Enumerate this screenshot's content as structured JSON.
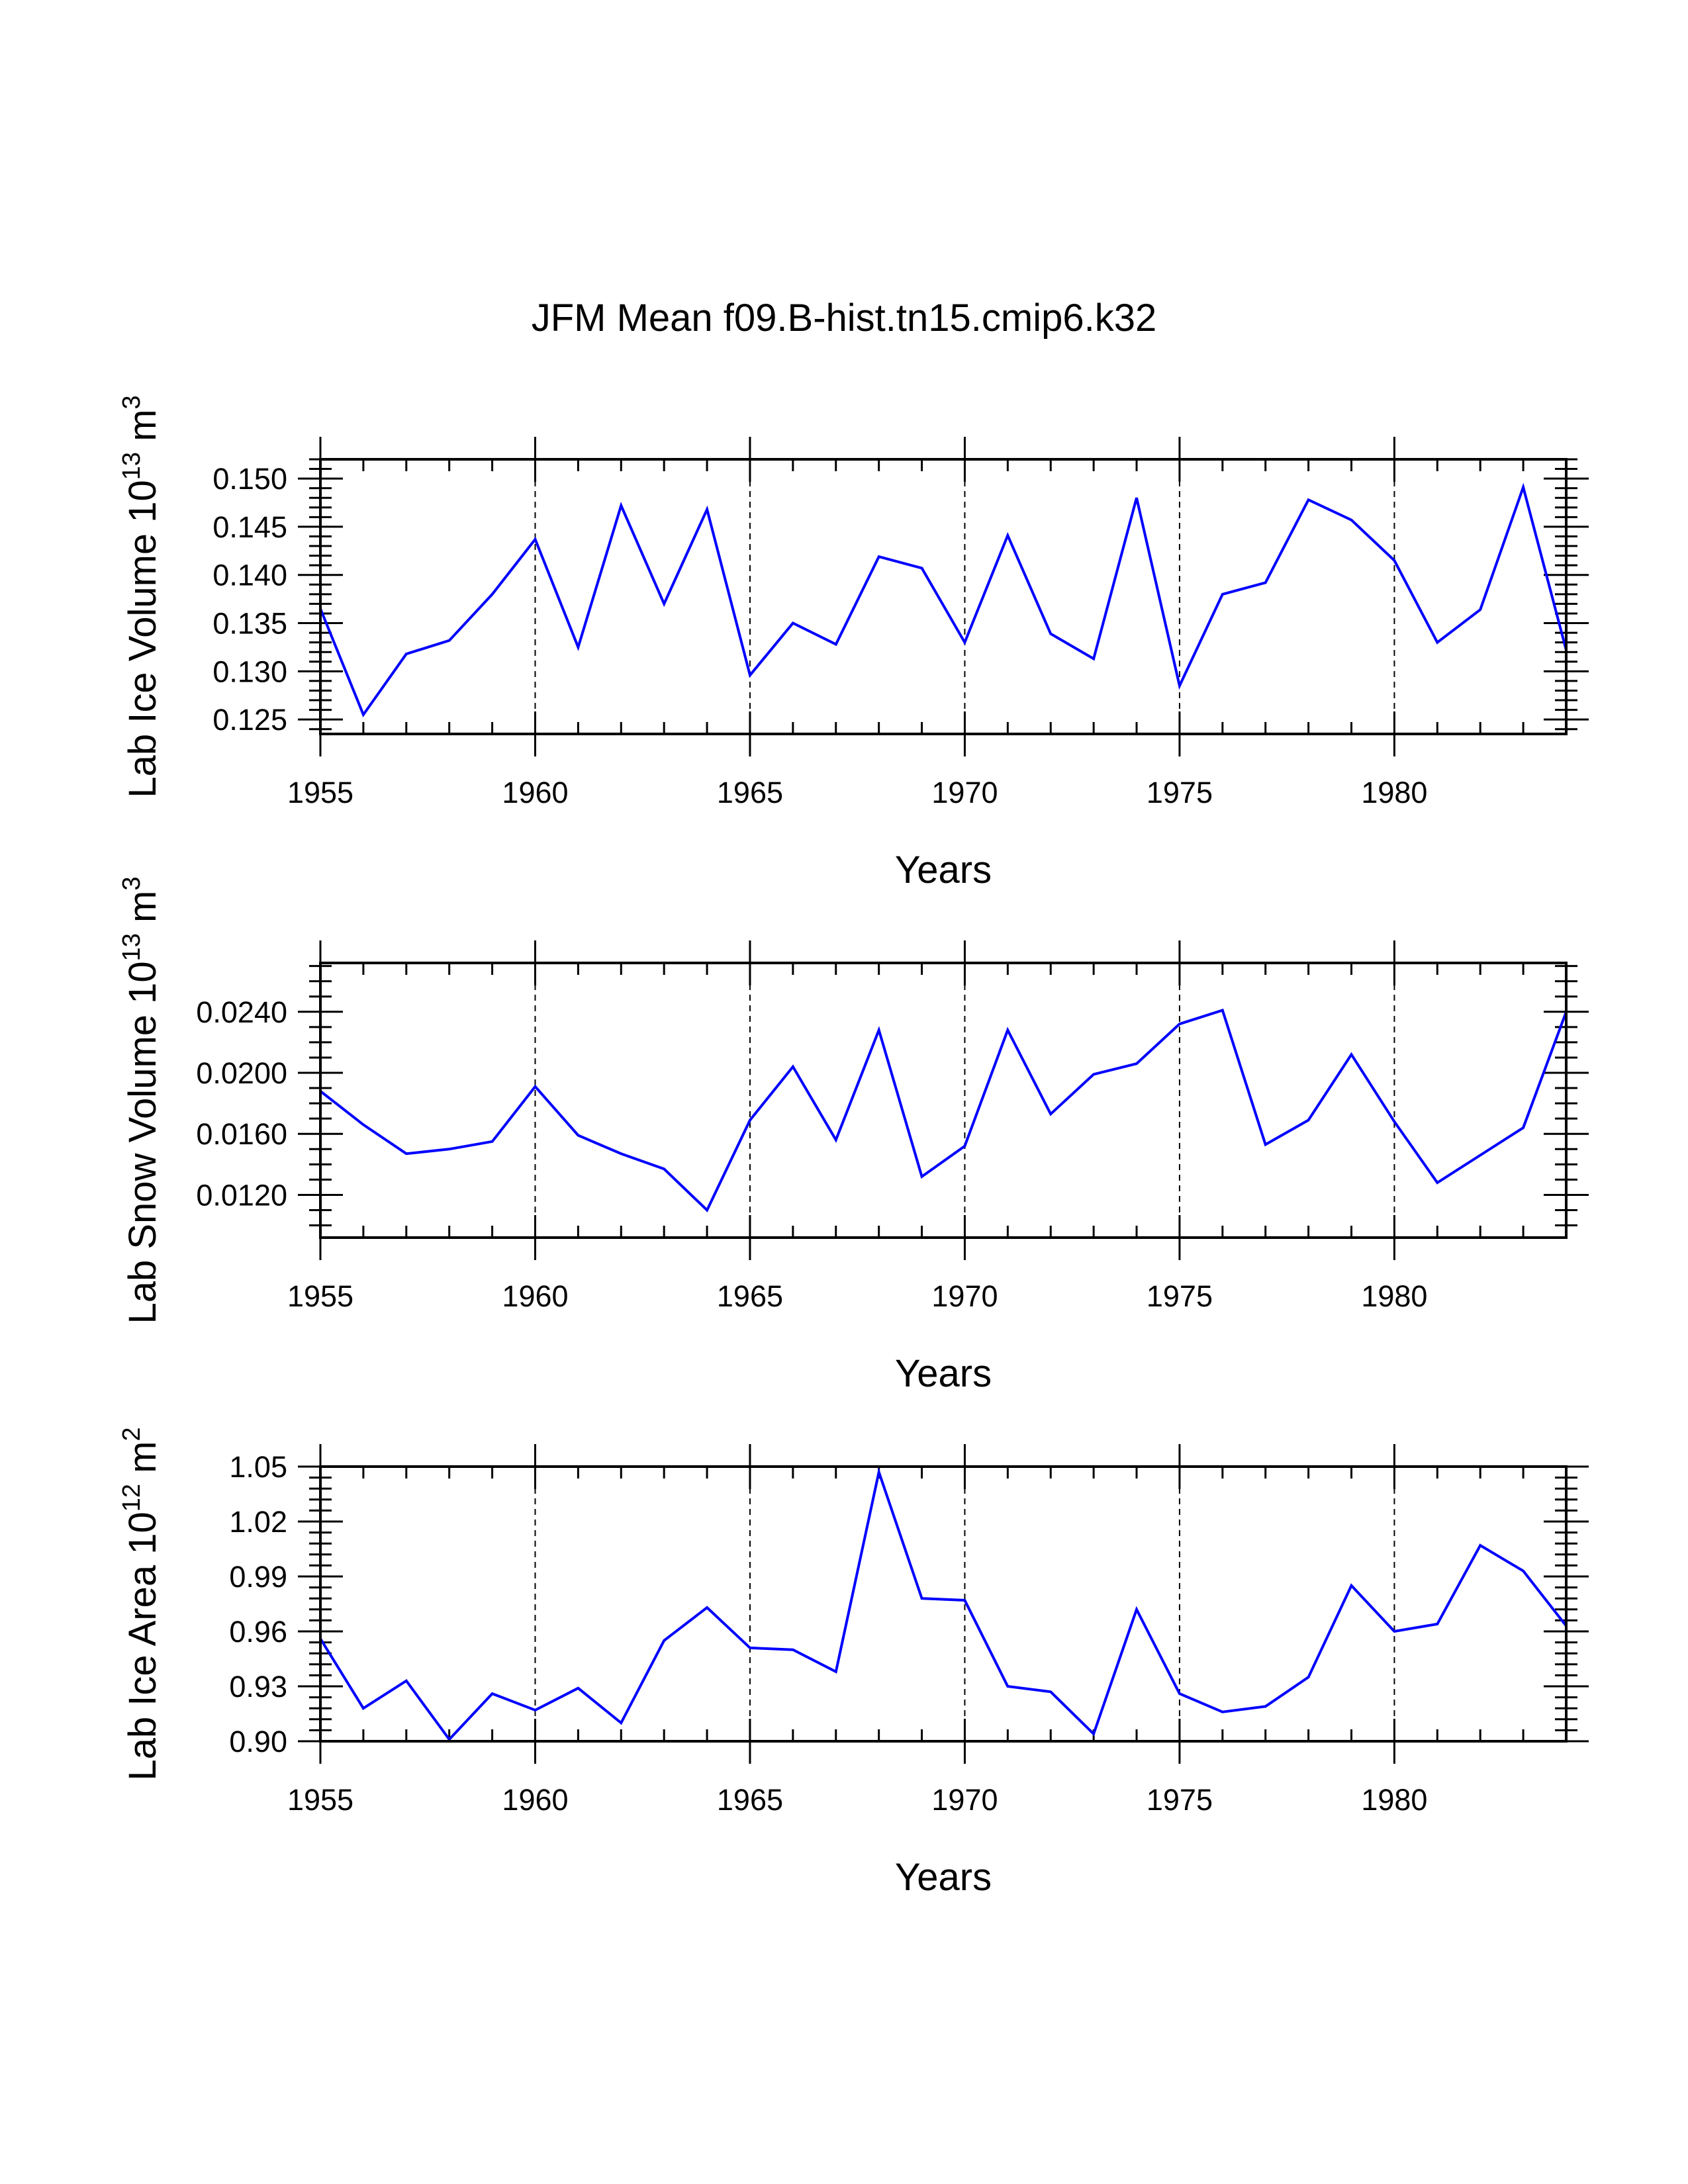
{
  "title": "JFM Mean f09.B-hist.tn15.cmip6.k32",
  "line_color": "#0000ff",
  "chart_data": [
    {
      "type": "line",
      "ylabel_text": "Lab Ice Volume 10",
      "ylabel_exp": "13",
      "ylabel_unit": " m",
      "ylabel_unit_exp": "3",
      "xlabel": "Years",
      "xlim": [
        1955,
        1984
      ],
      "ylim": [
        0.1235,
        0.152
      ],
      "x_ticks": [
        1955,
        1960,
        1965,
        1970,
        1975,
        1980
      ],
      "y_ticks": [
        0.125,
        0.13,
        0.135,
        0.14,
        0.145,
        0.15
      ],
      "y_tick_labels": [
        "0.125",
        "0.130",
        "0.135",
        "0.140",
        "0.145",
        "0.150"
      ],
      "y_minor_step": 0.001,
      "grid_x": [
        1960,
        1965,
        1970,
        1975,
        1980
      ],
      "x": [
        1955,
        1956,
        1957,
        1958,
        1959,
        1960,
        1961,
        1962,
        1963,
        1964,
        1965,
        1966,
        1967,
        1968,
        1969,
        1970,
        1971,
        1972,
        1973,
        1974,
        1975,
        1976,
        1977,
        1978,
        1979,
        1980,
        1981,
        1982,
        1983,
        1984
      ],
      "values": [
        0.1365,
        0.1255,
        0.1318,
        0.1332,
        0.138,
        0.1437,
        0.1325,
        0.1472,
        0.137,
        0.1468,
        0.1296,
        0.135,
        0.1328,
        0.1419,
        0.1407,
        0.133,
        0.1441,
        0.1339,
        0.1313,
        0.148,
        0.1285,
        0.138,
        0.1392,
        0.1478,
        0.1457,
        0.1415,
        0.133,
        0.1364,
        0.1491,
        0.1322
      ]
    },
    {
      "type": "line",
      "ylabel_text": "Lab Snow Volume 10",
      "ylabel_exp": "13",
      "ylabel_unit": " m",
      "ylabel_unit_exp": "3",
      "xlabel": "Years",
      "xlim": [
        1955,
        1984
      ],
      "ylim": [
        0.0092,
        0.0272
      ],
      "x_ticks": [
        1955,
        1960,
        1965,
        1970,
        1975,
        1980
      ],
      "y_ticks": [
        0.012,
        0.016,
        0.02,
        0.024
      ],
      "y_tick_labels": [
        "0.0120",
        "0.0160",
        "0.0200",
        "0.0240"
      ],
      "y_minor_step": 0.001,
      "grid_x": [
        1960,
        1965,
        1970,
        1975,
        1980
      ],
      "x": [
        1955,
        1956,
        1957,
        1958,
        1959,
        1960,
        1961,
        1962,
        1963,
        1964,
        1965,
        1966,
        1967,
        1968,
        1969,
        1970,
        1971,
        1972,
        1973,
        1974,
        1975,
        1976,
        1977,
        1978,
        1979,
        1980,
        1981,
        1982,
        1983,
        1984
      ],
      "values": [
        0.0188,
        0.0166,
        0.0147,
        0.015,
        0.0155,
        0.0191,
        0.0159,
        0.0147,
        0.0137,
        0.011,
        0.0169,
        0.0204,
        0.0156,
        0.0228,
        0.0132,
        0.0152,
        0.0228,
        0.0173,
        0.0199,
        0.0206,
        0.0232,
        0.0241,
        0.0153,
        0.0169,
        0.0212,
        0.0168,
        0.0128,
        0.0146,
        0.0164,
        0.024
      ]
    },
    {
      "type": "line",
      "ylabel_text": "Lab Ice Area 10",
      "ylabel_exp": "12",
      "ylabel_unit": " m",
      "ylabel_unit_exp": "2",
      "xlabel": "Years",
      "xlim": [
        1955,
        1984
      ],
      "ylim": [
        0.9,
        1.05
      ],
      "x_ticks": [
        1955,
        1960,
        1965,
        1970,
        1975,
        1980
      ],
      "y_ticks": [
        0.9,
        0.93,
        0.96,
        0.99,
        1.02,
        1.05
      ],
      "y_tick_labels": [
        "0.90",
        "0.93",
        "0.96",
        "0.99",
        "1.02",
        "1.05"
      ],
      "y_minor_step": 0.006,
      "grid_x": [
        1960,
        1965,
        1970,
        1975,
        1980
      ],
      "x": [
        1955,
        1956,
        1957,
        1958,
        1959,
        1960,
        1961,
        1962,
        1963,
        1964,
        1965,
        1966,
        1967,
        1968,
        1969,
        1970,
        1971,
        1972,
        1973,
        1974,
        1975,
        1976,
        1977,
        1978,
        1979,
        1980,
        1981,
        1982,
        1983,
        1984
      ],
      "values": [
        0.956,
        0.918,
        0.933,
        0.901,
        0.926,
        0.917,
        0.929,
        0.91,
        0.955,
        0.973,
        0.951,
        0.95,
        0.938,
        1.047,
        0.978,
        0.977,
        0.93,
        0.927,
        0.904,
        0.972,
        0.926,
        0.916,
        0.919,
        0.935,
        0.985,
        0.96,
        0.964,
        1.007,
        0.993,
        0.963
      ]
    }
  ]
}
